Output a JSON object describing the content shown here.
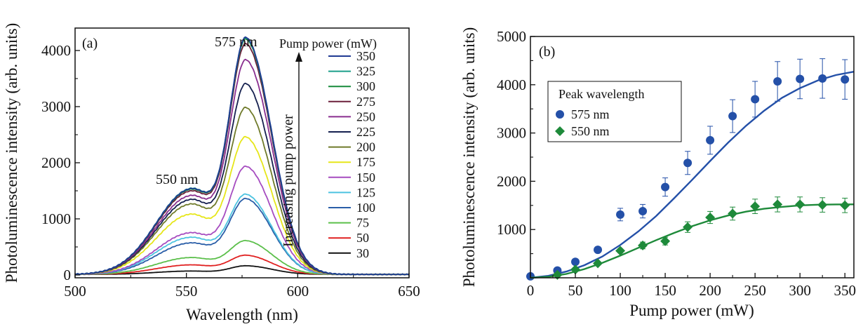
{
  "chart_data": [
    {
      "type": "line",
      "panel_label": "(a)",
      "xlabel": "Wavelength (nm)",
      "ylabel": "Photoluminescence intensity (arb. units)",
      "xlim": [
        500,
        650
      ],
      "ylim": [
        -50,
        4400
      ],
      "xticks": [
        500,
        550,
        600,
        650
      ],
      "yticks": [
        0,
        1000,
        2000,
        3000,
        4000
      ],
      "grid": false,
      "legend_title": "Pump power (mW)",
      "legend_position": "top-right",
      "annotations": [
        "575 nm",
        "550 nm"
      ],
      "arrow_label": "Increasing pump power",
      "series": [
        {
          "name": "350",
          "color": "#1f3a93",
          "peak550": 1520,
          "peak575": 4110
        },
        {
          "name": "325",
          "color": "#1b9e8a",
          "peak550": 1525,
          "peak575": 4100
        },
        {
          "name": "300",
          "color": "#178a3a",
          "peak550": 1510,
          "peak575": 4080
        },
        {
          "name": "275",
          "color": "#6b1f3a",
          "peak550": 1480,
          "peak575": 4000
        },
        {
          "name": "250",
          "color": "#8a2e8f",
          "peak550": 1400,
          "peak575": 3720
        },
        {
          "name": "225",
          "color": "#15204f",
          "peak550": 1330,
          "peak575": 3300
        },
        {
          "name": "200",
          "color": "#6f7a2a",
          "peak550": 1250,
          "peak575": 2880
        },
        {
          "name": "175",
          "color": "#e6e619",
          "peak550": 1070,
          "peak575": 2370
        },
        {
          "name": "150",
          "color": "#a64cc0",
          "peak550": 740,
          "peak575": 1870
        },
        {
          "name": "125",
          "color": "#4cc3e0",
          "peak550": 660,
          "peak575": 1380
        },
        {
          "name": "100",
          "color": "#2a5ea8",
          "peak550": 560,
          "peak575": 1310
        },
        {
          "name": "75",
          "color": "#5bbf4a",
          "peak550": 300,
          "peak575": 580
        },
        {
          "name": "50",
          "color": "#e02020",
          "peak550": 170,
          "peak575": 330
        },
        {
          "name": "30",
          "color": "#111111",
          "peak550": 60,
          "peak575": 150
        }
      ]
    },
    {
      "type": "scatter",
      "panel_label": "(b)",
      "xlabel": "Pump power (mW)",
      "ylabel": "Photoluminescence intensity (arb. units)",
      "xlim": [
        0,
        360
      ],
      "ylim": [
        0,
        5000
      ],
      "xticks": [
        0,
        50,
        100,
        150,
        200,
        250,
        300,
        350
      ],
      "yticks": [
        1000,
        2000,
        3000,
        4000,
        5000
      ],
      "grid": false,
      "legend_title": "Peak wavelength",
      "legend_position": "top-left",
      "series": [
        {
          "name": "575 nm",
          "marker": "circle",
          "color": "#2450a8",
          "x": [
            0,
            30,
            50,
            75,
            100,
            125,
            150,
            175,
            200,
            225,
            250,
            275,
            300,
            325,
            350
          ],
          "y": [
            30,
            150,
            330,
            580,
            1310,
            1380,
            1880,
            2380,
            2850,
            3350,
            3700,
            4070,
            4120,
            4130,
            4110
          ],
          "err": [
            0,
            0,
            0,
            0,
            130,
            140,
            190,
            240,
            290,
            340,
            370,
            410,
            410,
            410,
            410
          ],
          "fit": [
            [
              0,
              0
            ],
            [
              20,
              40
            ],
            [
              40,
              130
            ],
            [
              60,
              260
            ],
            [
              80,
              440
            ],
            [
              100,
              680
            ],
            [
              120,
              960
            ],
            [
              140,
              1280
            ],
            [
              160,
              1650
            ],
            [
              180,
              2030
            ],
            [
              200,
              2420
            ],
            [
              220,
              2800
            ],
            [
              240,
              3150
            ],
            [
              260,
              3460
            ],
            [
              280,
              3730
            ],
            [
              300,
              3930
            ],
            [
              320,
              4090
            ],
            [
              340,
              4200
            ],
            [
              360,
              4270
            ]
          ]
        },
        {
          "name": "550 nm",
          "marker": "diamond",
          "color": "#1e8a3a",
          "x": [
            30,
            50,
            75,
            100,
            125,
            150,
            175,
            200,
            225,
            250,
            275,
            300,
            325,
            350
          ],
          "y": [
            60,
            170,
            300,
            560,
            670,
            760,
            1050,
            1250,
            1330,
            1480,
            1520,
            1520,
            1510,
            1500
          ],
          "err": [
            0,
            0,
            0,
            40,
            70,
            80,
            110,
            125,
            135,
            150,
            155,
            155,
            150,
            150
          ],
          "fit": [
            [
              0,
              0
            ],
            [
              20,
              20
            ],
            [
              40,
              80
            ],
            [
              60,
              180
            ],
            [
              80,
              310
            ],
            [
              100,
              460
            ],
            [
              120,
              620
            ],
            [
              140,
              780
            ],
            [
              160,
              930
            ],
            [
              180,
              1070
            ],
            [
              200,
              1190
            ],
            [
              220,
              1290
            ],
            [
              240,
              1370
            ],
            [
              260,
              1430
            ],
            [
              280,
              1470
            ],
            [
              300,
              1500
            ],
            [
              320,
              1515
            ],
            [
              340,
              1520
            ],
            [
              360,
              1522
            ]
          ]
        }
      ]
    }
  ]
}
